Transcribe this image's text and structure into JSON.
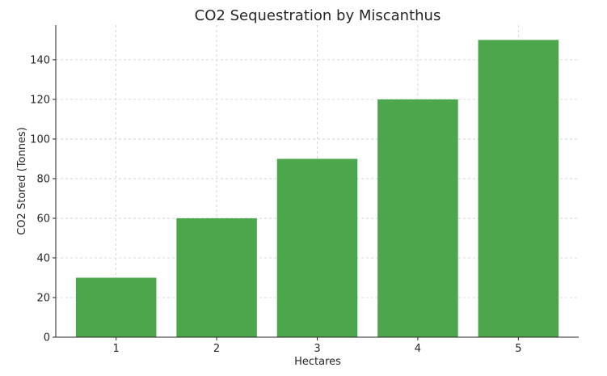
{
  "chart_data": {
    "type": "bar",
    "title": "CO2 Sequestration by Miscanthus",
    "xlabel": "Hectares",
    "ylabel": "CO2 Stored (Tonnes)",
    "categories": [
      "1",
      "2",
      "3",
      "4",
      "5"
    ],
    "values": [
      30,
      60,
      90,
      120,
      150
    ],
    "ylim": [
      0,
      157.5
    ],
    "yticks": [
      0,
      20,
      40,
      60,
      80,
      100,
      120,
      140
    ],
    "grid": true,
    "bar_color": "#4ca64c"
  }
}
